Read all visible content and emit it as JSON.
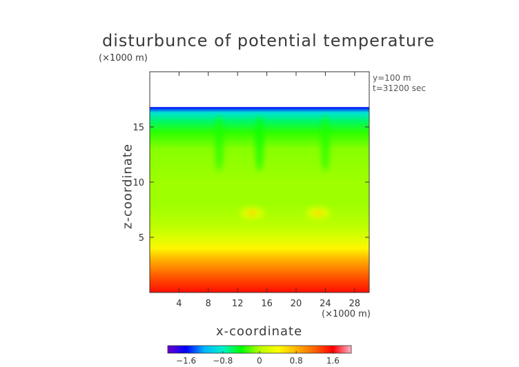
{
  "chart_data": {
    "type": "heatmap",
    "title": "disturbunce of potential temperature",
    "xlabel": "x-coordinate",
    "ylabel": "z-coordinate",
    "x_unit": "(×1000 m)",
    "z_unit": "(×1000 m)",
    "info": [
      "y=100 m",
      "t=31200 sec"
    ],
    "xlim": [
      0,
      30
    ],
    "ylim": [
      0,
      20
    ],
    "x_ticks": [
      4,
      8,
      12,
      16,
      20,
      24,
      28
    ],
    "y_ticks": [
      5,
      10,
      15
    ],
    "data_top_z": 16.8,
    "colorbar": {
      "range": [
        -2.0,
        2.0
      ],
      "ticks": [
        -1.6,
        -0.8,
        0,
        0.8,
        1.6
      ],
      "tick_labels": [
        "−1.6",
        "−0.8",
        "0",
        "0.8",
        "1.6"
      ],
      "colors": [
        "#6a00c8",
        "#0000ff",
        "#00b4ff",
        "#00f0c8",
        "#00ff00",
        "#b4ff00",
        "#ffff00",
        "#ffb400",
        "#ff6400",
        "#ff0000",
        "#ffb4c8"
      ]
    },
    "vertical_profile": [
      {
        "z": 0.0,
        "value": 1.55
      },
      {
        "z": 1.0,
        "value": 1.35
      },
      {
        "z": 2.0,
        "value": 1.1
      },
      {
        "z": 3.0,
        "value": 0.8
      },
      {
        "z": 4.0,
        "value": 0.45
      },
      {
        "z": 5.0,
        "value": 0.2
      },
      {
        "z": 6.0,
        "value": 0.05
      },
      {
        "z": 8.0,
        "value": -0.05
      },
      {
        "z": 10.0,
        "value": -0.05
      },
      {
        "z": 13.0,
        "value": -0.1
      },
      {
        "z": 14.5,
        "value": -0.3
      },
      {
        "z": 15.5,
        "value": -0.6
      },
      {
        "z": 16.3,
        "value": -0.9
      },
      {
        "z": 16.8,
        "value": -1.6
      }
    ],
    "features": [
      {
        "kind": "warm_anomaly",
        "x": 14,
        "z": 7.2,
        "value": 0.6
      },
      {
        "kind": "warm_anomaly",
        "x": 23,
        "z": 7.2,
        "value": 0.6
      },
      {
        "kind": "cold_plume",
        "x": 9.5,
        "z_top": 16,
        "z_bottom": 11,
        "value": -0.35
      },
      {
        "kind": "cold_plume",
        "x": 15,
        "z_top": 16,
        "z_bottom": 11,
        "value": -0.4
      },
      {
        "kind": "cold_plume",
        "x": 24,
        "z_top": 16,
        "z_bottom": 11,
        "value": -0.35
      }
    ]
  }
}
